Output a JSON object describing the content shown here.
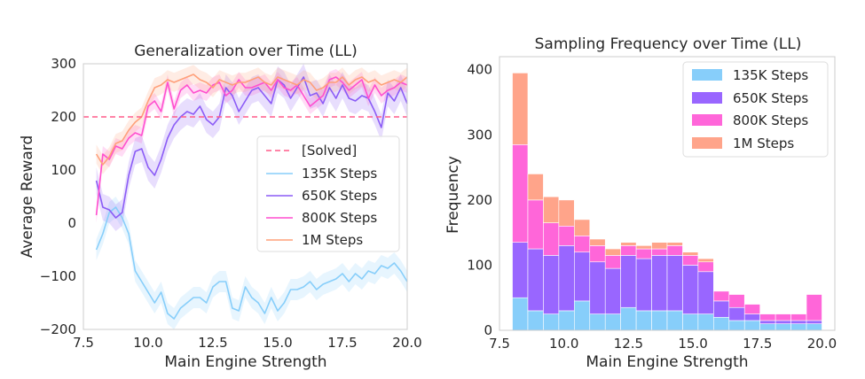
{
  "chart_data": [
    {
      "type": "line",
      "title": "Generalization over Time (LL)",
      "xlabel": "Main Engine Strength",
      "ylabel": "Average Reward",
      "xlim": [
        7.5,
        20.0
      ],
      "ylim": [
        -200,
        300
      ],
      "x_ticks": [
        "7.5",
        "10.0",
        "12.5",
        "15.0",
        "17.5",
        "20.0"
      ],
      "y_ticks": [
        "300",
        "200",
        "100",
        "0",
        "−100",
        "−200"
      ],
      "grid": false,
      "legend_position": "center-right",
      "hline": {
        "name": "[Solved]",
        "y": 200,
        "color": "#ff5c8a",
        "style": "dashed"
      },
      "x": [
        8.0,
        8.25,
        8.5,
        8.75,
        9.0,
        9.25,
        9.5,
        9.75,
        10.0,
        10.25,
        10.5,
        10.75,
        11.0,
        11.25,
        11.5,
        11.75,
        12.0,
        12.25,
        12.5,
        12.75,
        13.0,
        13.25,
        13.5,
        13.75,
        14.0,
        14.25,
        14.5,
        14.75,
        15.0,
        15.25,
        15.5,
        15.75,
        16.0,
        16.25,
        16.5,
        16.75,
        17.0,
        17.25,
        17.5,
        17.75,
        18.0,
        18.25,
        18.5,
        18.75,
        19.0,
        19.25,
        19.5,
        19.75,
        20.0
      ],
      "series": [
        {
          "name": "135K Steps",
          "color": "#87cefa",
          "values": [
            -50,
            -20,
            20,
            30,
            10,
            -20,
            -90,
            -110,
            -130,
            -150,
            -130,
            -170,
            -180,
            -160,
            -150,
            -140,
            -140,
            -150,
            -120,
            -110,
            -110,
            -160,
            -165,
            -120,
            -140,
            -150,
            -170,
            -140,
            -165,
            -150,
            -125,
            -125,
            -120,
            -110,
            -125,
            -115,
            -110,
            -105,
            -95,
            -110,
            -95,
            -105,
            -90,
            -95,
            -80,
            -85,
            -75,
            -90,
            -110
          ],
          "band": 20
        },
        {
          "name": "650K Steps",
          "color": "#8b5cf6",
          "values": [
            80,
            30,
            25,
            10,
            20,
            90,
            135,
            140,
            105,
            90,
            120,
            160,
            185,
            200,
            210,
            205,
            220,
            195,
            185,
            200,
            255,
            240,
            210,
            230,
            250,
            255,
            240,
            225,
            270,
            260,
            235,
            255,
            275,
            240,
            245,
            225,
            255,
            235,
            260,
            235,
            230,
            240,
            235,
            210,
            180,
            245,
            230,
            255,
            225
          ],
          "band": 25
        },
        {
          "name": "800K Steps",
          "color": "#ff4fcf",
          "values": [
            15,
            130,
            120,
            145,
            140,
            160,
            170,
            165,
            220,
            230,
            210,
            265,
            215,
            250,
            260,
            245,
            250,
            245,
            260,
            265,
            240,
            250,
            270,
            255,
            255,
            260,
            265,
            250,
            270,
            255,
            250,
            260,
            240,
            220,
            230,
            240,
            270,
            275,
            265,
            250,
            260,
            270,
            235,
            260,
            240,
            250,
            255,
            265,
            260
          ],
          "band": 15
        },
        {
          "name": "1M Steps",
          "color": "#ffa07a",
          "values": [
            130,
            110,
            125,
            150,
            155,
            175,
            190,
            200,
            230,
            255,
            260,
            270,
            265,
            270,
            275,
            280,
            270,
            265,
            255,
            270,
            265,
            260,
            265,
            265,
            270,
            275,
            265,
            260,
            275,
            270,
            265,
            260,
            270,
            265,
            250,
            255,
            265,
            265,
            275,
            260,
            270,
            275,
            265,
            270,
            260,
            265,
            270,
            265,
            275
          ],
          "band": 18
        }
      ]
    },
    {
      "type": "bar",
      "stacked": true,
      "title": "Sampling Frequency over Time (LL)",
      "xlabel": "Main Engine Strength",
      "ylabel": "Frequency",
      "xlim": [
        7.5,
        20.5
      ],
      "ylim": [
        0,
        420
      ],
      "x_ticks": [
        "7.5",
        "10.0",
        "12.5",
        "15.0",
        "17.5",
        "20.0"
      ],
      "y_ticks": [
        "400",
        "300",
        "200",
        "100",
        "0"
      ],
      "grid": false,
      "legend_position": "top-right",
      "bin_edges": [
        8.0,
        8.6,
        9.2,
        9.8,
        10.4,
        11.0,
        11.6,
        12.2,
        12.8,
        13.4,
        14.0,
        14.6,
        15.2,
        15.8,
        16.4,
        17.0,
        17.6,
        18.2,
        18.8,
        19.4,
        20.0
      ],
      "series": [
        {
          "name": "135K Steps",
          "color": "#87cefa",
          "values": [
            50,
            30,
            25,
            30,
            45,
            25,
            25,
            35,
            30,
            30,
            30,
            25,
            25,
            20,
            15,
            15,
            10,
            10,
            10,
            10
          ]
        },
        {
          "name": "650K Steps",
          "color": "#9966ff",
          "values": [
            85,
            95,
            90,
            100,
            75,
            80,
            70,
            80,
            80,
            85,
            85,
            75,
            65,
            25,
            20,
            10,
            5,
            5,
            5,
            5
          ]
        },
        {
          "name": "800K Steps",
          "color": "#ff66d9",
          "values": [
            150,
            75,
            50,
            30,
            25,
            25,
            20,
            15,
            15,
            10,
            15,
            15,
            15,
            15,
            20,
            15,
            10,
            10,
            10,
            40
          ]
        },
        {
          "name": "1M Steps",
          "color": "#ffa48a",
          "values": [
            110,
            40,
            40,
            40,
            25,
            10,
            10,
            5,
            5,
            10,
            5,
            5,
            5,
            0,
            0,
            0,
            0,
            0,
            0,
            0
          ]
        }
      ]
    }
  ]
}
